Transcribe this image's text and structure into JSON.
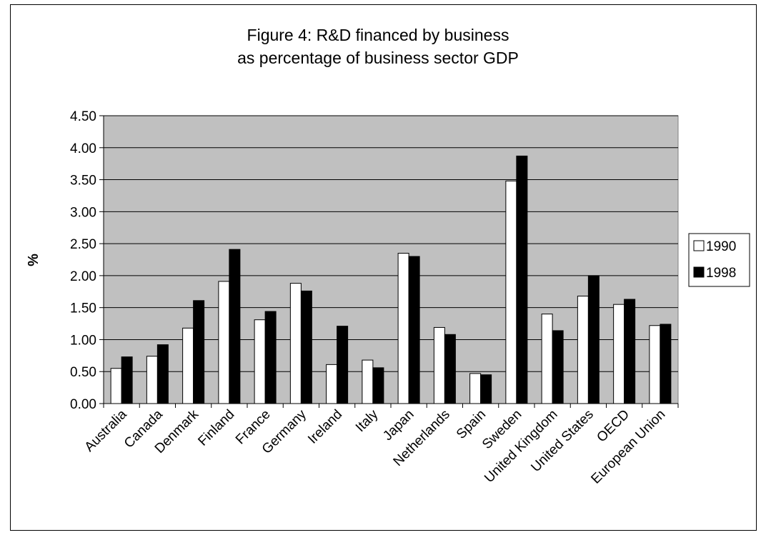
{
  "chart_data": {
    "type": "bar",
    "title_line1": "Figure 4: R&D financed by business",
    "title_line2": "as percentage of business sector GDP",
    "xlabel": "",
    "ylabel": "%",
    "ylim": [
      0,
      4.5
    ],
    "ytick_step": 0.5,
    "ytick_labels": [
      "0.00",
      "0.50",
      "1.00",
      "1.50",
      "2.00",
      "2.50",
      "3.00",
      "3.50",
      "4.00",
      "4.50"
    ],
    "grid": true,
    "legend_position": "right",
    "plot_background": "#c0c0c0",
    "categories": [
      "Australia",
      "Canada",
      "Denmark",
      "Finland",
      "France",
      "Germany",
      "Ireland",
      "Italy",
      "Japan",
      "Netherlands",
      "Spain",
      "Sweden",
      "United Kingdom",
      "United States",
      "OECD",
      "European Union"
    ],
    "series": [
      {
        "name": "1990",
        "color": "#ffffff",
        "values": [
          0.55,
          0.74,
          1.18,
          1.91,
          1.31,
          1.88,
          0.61,
          0.68,
          2.35,
          1.19,
          0.47,
          3.48,
          1.4,
          1.68,
          1.55,
          1.22
        ]
      },
      {
        "name": "1998",
        "color": "#000000",
        "values": [
          0.73,
          0.92,
          1.61,
          2.41,
          1.44,
          1.76,
          1.21,
          0.56,
          2.3,
          1.08,
          0.45,
          3.87,
          1.14,
          2.0,
          1.63,
          1.24
        ]
      }
    ]
  }
}
